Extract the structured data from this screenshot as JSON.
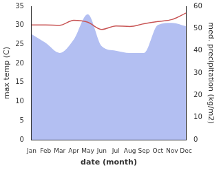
{
  "chart_data": {
    "type": "line",
    "x_label": "date (month)",
    "y_label": "max temp (C)",
    "y2_label": "med. precipitation (kg/m2)",
    "categories": [
      "Jan",
      "Feb",
      "Mar",
      "Apr",
      "May",
      "Jun",
      "Jul",
      "Aug",
      "Sep",
      "Oct",
      "Nov",
      "Dec"
    ],
    "series": [
      {
        "name": "med. precipitation (kg/m2)",
        "type": "area",
        "axis": "y2",
        "color": "#b3bff2",
        "values": [
          47.4,
          43.5,
          39,
          45,
          56.4,
          42,
          40,
          39,
          39,
          51.6,
          52.5,
          51
        ]
      },
      {
        "name": "max temp (C)",
        "type": "line",
        "axis": "y",
        "color": "#c85454",
        "values": [
          30.1,
          30.1,
          30,
          31.3,
          30.8,
          28.9,
          29.8,
          29.7,
          30.4,
          31,
          31.5,
          33.2
        ]
      }
    ],
    "ylim": [
      0,
      35
    ],
    "yticks": [
      0,
      5,
      10,
      15,
      20,
      25,
      30,
      35
    ],
    "y2lim": [
      0,
      60
    ],
    "y2ticks": [
      0,
      10,
      20,
      30,
      40,
      50,
      60
    ],
    "grid": false
  }
}
